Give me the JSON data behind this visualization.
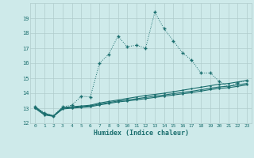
{
  "xlabel": "Humidex (Indice chaleur)",
  "bg_color": "#ceeaea",
  "grid_color": "#b0cccc",
  "line_color": "#1a6e6e",
  "x": [
    0,
    1,
    2,
    3,
    4,
    5,
    6,
    7,
    8,
    9,
    10,
    11,
    12,
    13,
    14,
    15,
    16,
    17,
    18,
    19,
    20,
    21,
    22,
    23
  ],
  "y_main": [
    13.1,
    12.7,
    12.5,
    13.1,
    13.2,
    13.8,
    13.75,
    16.0,
    16.6,
    17.8,
    17.1,
    17.2,
    17.0,
    19.4,
    18.3,
    17.5,
    16.7,
    16.2,
    15.35,
    15.35,
    14.8,
    14.4,
    14.7,
    14.85
  ],
  "y_line1": [
    13.1,
    12.65,
    12.5,
    13.05,
    13.1,
    13.15,
    13.2,
    13.35,
    13.45,
    13.55,
    13.65,
    13.75,
    13.85,
    13.92,
    14.0,
    14.1,
    14.2,
    14.3,
    14.4,
    14.5,
    14.6,
    14.65,
    14.75,
    14.85
  ],
  "y_line2": [
    13.05,
    12.6,
    12.48,
    13.0,
    13.05,
    13.1,
    13.15,
    13.28,
    13.38,
    13.48,
    13.55,
    13.63,
    13.72,
    13.8,
    13.88,
    13.97,
    14.05,
    14.13,
    14.23,
    14.33,
    14.42,
    14.47,
    14.56,
    14.65
  ],
  "y_line3": [
    13.0,
    12.55,
    12.46,
    12.95,
    13.0,
    13.05,
    13.1,
    13.22,
    13.32,
    13.42,
    13.48,
    13.56,
    13.64,
    13.72,
    13.8,
    13.88,
    13.96,
    14.04,
    14.14,
    14.24,
    14.32,
    14.37,
    14.46,
    14.56
  ],
  "ylim": [
    12,
    20
  ],
  "xlim": [
    -0.5,
    23.5
  ],
  "yticks": [
    12,
    13,
    14,
    15,
    16,
    17,
    18,
    19
  ],
  "xticks": [
    0,
    1,
    2,
    3,
    4,
    5,
    6,
    7,
    8,
    9,
    10,
    11,
    12,
    13,
    14,
    15,
    16,
    17,
    18,
    19,
    20,
    21,
    22,
    23
  ]
}
